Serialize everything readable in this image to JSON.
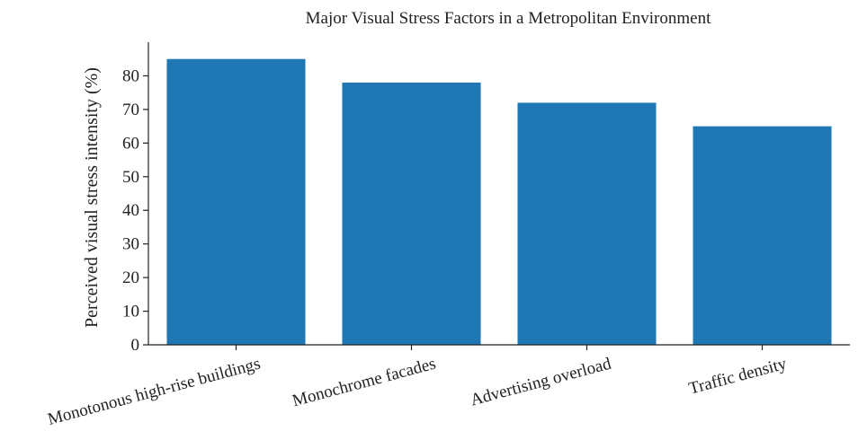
{
  "chart_data": {
    "type": "bar",
    "title": "Major Visual Stress Factors in a Metropolitan Environment",
    "xlabel": "",
    "ylabel": "Perceived visual stress intensity (%)",
    "categories": [
      "Monotonous high-rise buildings",
      "Monochrome facades",
      "Advertising overload",
      "Traffic density"
    ],
    "values": [
      85,
      78,
      72,
      65
    ],
    "ylim": [
      0,
      90
    ],
    "yticks": [
      0,
      10,
      20,
      30,
      40,
      50,
      60,
      70,
      80
    ],
    "bar_color": "#1f77b4",
    "grid": false,
    "legend": "none"
  }
}
